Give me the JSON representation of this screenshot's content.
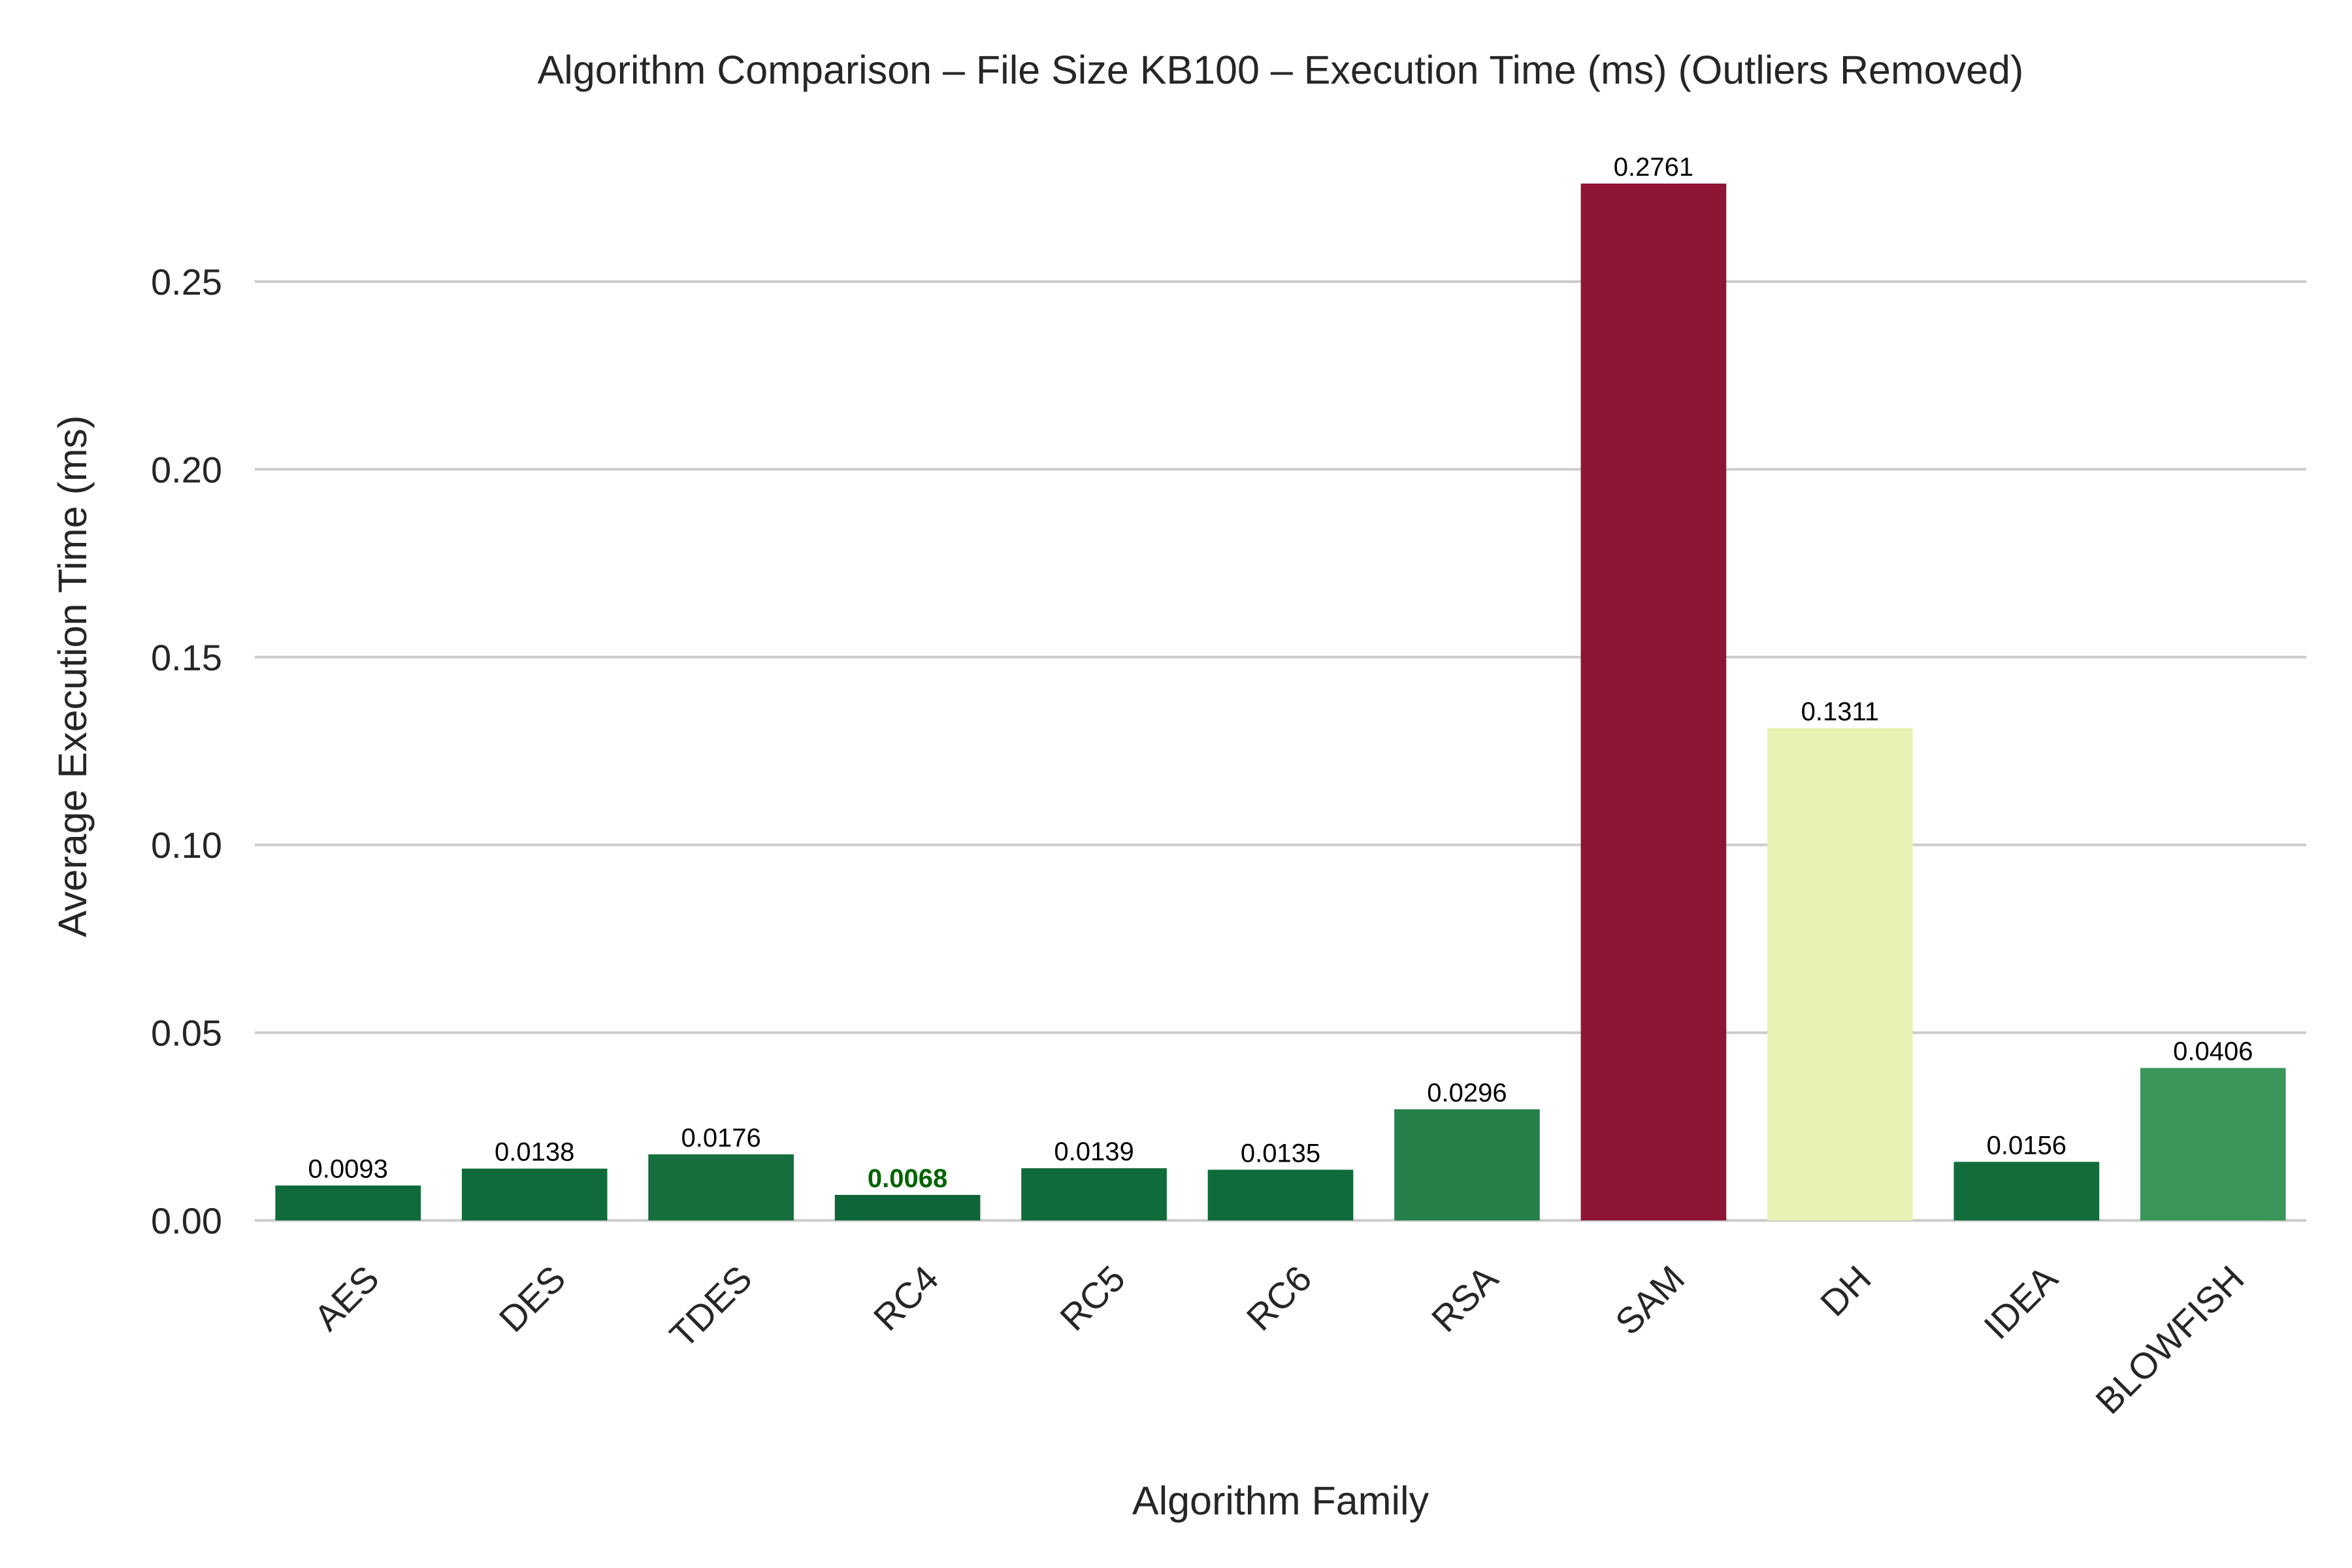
{
  "chart_data": {
    "type": "bar",
    "title": "Algorithm Comparison – File Size KB100 – Execution Time (ms) (Outliers Removed)",
    "xlabel": "Algorithm Family",
    "ylabel": "Average Execution Time (ms)",
    "categories": [
      "AES",
      "DES",
      "TDES",
      "RC4",
      "RC5",
      "RC6",
      "RSA",
      "SAM",
      "DH",
      "IDEA",
      "BLOWFISH"
    ],
    "values": [
      0.0093,
      0.0138,
      0.0176,
      0.0068,
      0.0139,
      0.0135,
      0.0296,
      0.2761,
      0.1311,
      0.0156,
      0.0406
    ],
    "value_labels": [
      "0.0093",
      "0.0138",
      "0.0176",
      "0.0068",
      "0.0139",
      "0.0135",
      "0.0296",
      "0.2761",
      "0.1311",
      "0.0156",
      "0.0406"
    ],
    "colors": [
      "#106b3a",
      "#106b3a",
      "#166f3c",
      "#0e6638",
      "#106b3a",
      "#106b3a",
      "#268049",
      "#8f1534",
      "#e9f1b4",
      "#126d3b",
      "#3a965b"
    ],
    "highlight_index": 3,
    "highlight_label_color": "#006400",
    "ylim": [
      0,
      0.285
    ],
    "yticks": [
      0.0,
      0.05,
      0.1,
      0.15,
      0.2,
      0.25
    ],
    "ytick_labels": [
      "0.00",
      "0.05",
      "0.10",
      "0.15",
      "0.20",
      "0.25"
    ],
    "grid": "horizontal",
    "legend": "none"
  }
}
